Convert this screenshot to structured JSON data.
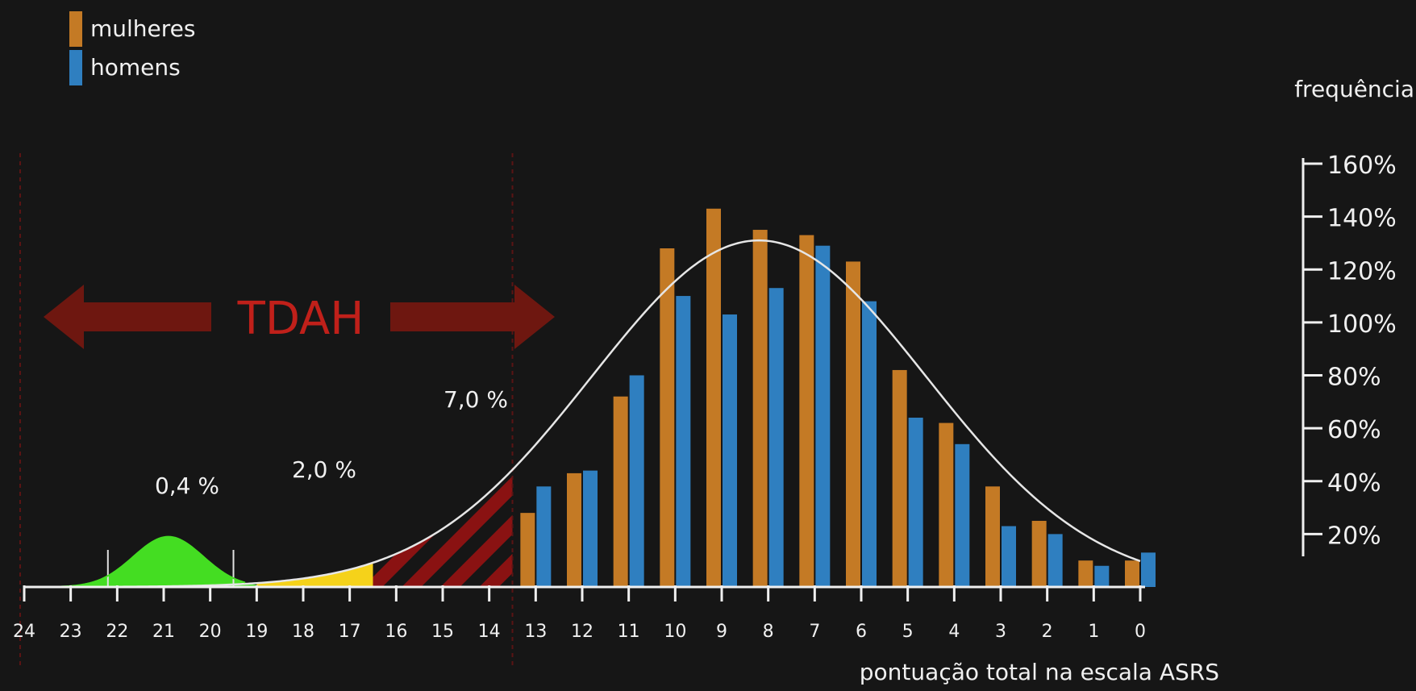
{
  "chart_data": {
    "type": "bar",
    "legend": {
      "placement": "top-left",
      "entries": [
        {
          "name": "mulheres",
          "color": "#c47a25"
        },
        {
          "name": "homens",
          "color": "#2f7fc0"
        }
      ]
    },
    "ylabel": "frequência",
    "xlabel": "pontuação total na escala ASRS",
    "x_axis": {
      "range": [
        24,
        0
      ],
      "reversed": true,
      "ticks": [
        "24",
        "23",
        "22",
        "21",
        "20",
        "19",
        "18",
        "17",
        "16",
        "15",
        "14",
        "13",
        "12",
        "11",
        "10",
        "9",
        "8",
        "7",
        "6",
        "5",
        "4",
        "3",
        "2",
        "1",
        "0"
      ]
    },
    "y_axis": {
      "range": [
        0,
        160
      ],
      "position": "right",
      "ticks": [
        "20%",
        "40%",
        "60%",
        "80%",
        "100%",
        "120%",
        "140%",
        "160%"
      ],
      "tick_values": [
        20,
        40,
        60,
        80,
        100,
        120,
        140,
        160
      ]
    },
    "categories": [
      13,
      12,
      11,
      10,
      9,
      8,
      7,
      6,
      5,
      4,
      3,
      2,
      1,
      0
    ],
    "series": [
      {
        "name": "mulheres",
        "color": "#c47a25",
        "values": [
          28,
          43,
          72,
          128,
          143,
          135,
          133,
          123,
          82,
          62,
          38,
          25,
          10,
          10
        ]
      },
      {
        "name": "homens",
        "color": "#2f7fc0",
        "values": [
          38,
          44,
          80,
          110,
          103,
          113,
          129,
          108,
          64,
          54,
          23,
          20,
          8,
          13
        ]
      }
    ],
    "fit_curve": {
      "color": "#e6e6e6",
      "peak_x": 8.2,
      "peak_y": 131,
      "sigma": 3.6
    },
    "annotations": {
      "tdah_label": "TDAH",
      "tdah_color": "#c0201a",
      "regions": [
        {
          "label": "0,4 %",
          "from": 23,
          "to": 19,
          "color": "#44dd22"
        },
        {
          "label": "2,0 %",
          "from": 19,
          "to": 16.5,
          "color": "#f5d21a"
        },
        {
          "label": "7,0 %",
          "from": 16.5,
          "to": 13.5,
          "color": "#8a1212"
        }
      ]
    }
  }
}
